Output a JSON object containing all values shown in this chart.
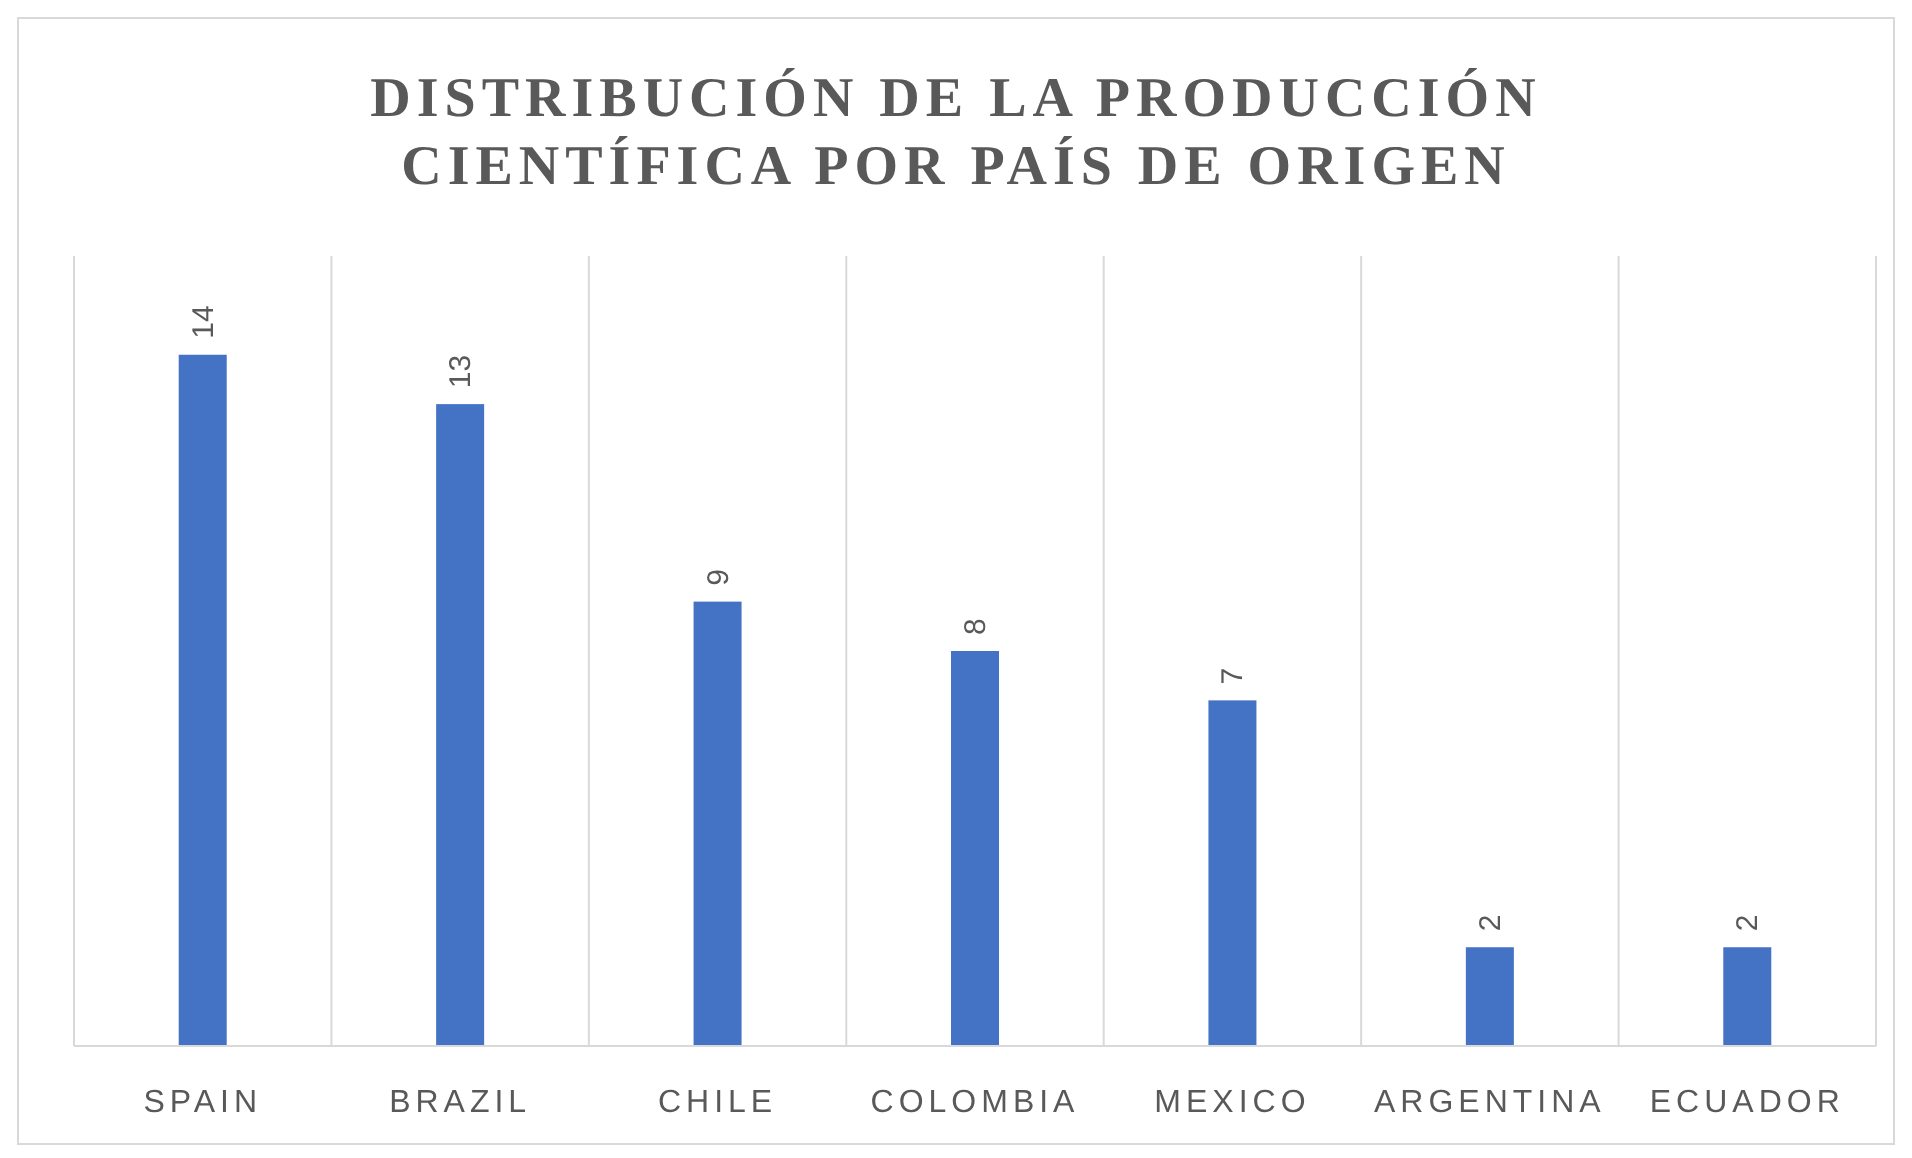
{
  "chart_data": {
    "type": "bar",
    "title": "DISTRIBUCIÓN DE LA PRODUCCIÓN CIENTÍFICA POR PAÍS DE ORIGEN",
    "categories": [
      "SPAIN",
      "BRAZIL",
      "CHILE",
      "COLOMBIA",
      "MEXICO",
      "ARGENTINA",
      "ECUADOR"
    ],
    "values": [
      14,
      13,
      9,
      8,
      7,
      2,
      2
    ],
    "color": "#4472c4",
    "ylim": [
      0,
      16
    ],
    "grid": "x",
    "data_labels": true,
    "tick_labels": "x"
  }
}
